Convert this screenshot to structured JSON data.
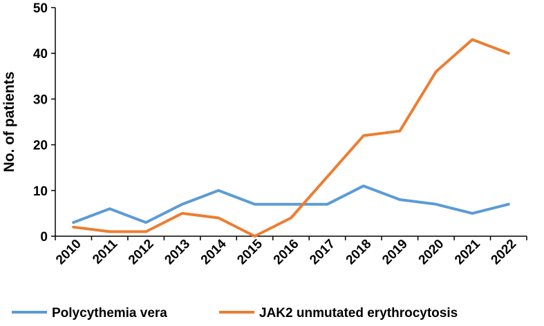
{
  "chart_data": {
    "type": "line",
    "title": "",
    "xlabel": "",
    "ylabel": "No. of patients",
    "ylim": [
      0,
      50
    ],
    "yticks": [
      0,
      10,
      20,
      30,
      40,
      50
    ],
    "grid": false,
    "legend_position": "bottom",
    "x": [
      "2010",
      "2011",
      "2012",
      "2013",
      "2014",
      "2015",
      "2016",
      "2017",
      "2018",
      "2019",
      "2020",
      "2021",
      "2022"
    ],
    "series": [
      {
        "name": "Polycythemia vera",
        "color": "#5B9BD5",
        "values": [
          3,
          6,
          3,
          7,
          10,
          7,
          7,
          7,
          11,
          8,
          7,
          5,
          7
        ]
      },
      {
        "name": "JAK2 unmutated erythrocytosis",
        "color": "#ED7D31",
        "values": [
          2,
          1,
          1,
          5,
          4,
          0,
          4,
          13,
          22,
          23,
          36,
          43,
          40
        ]
      }
    ]
  }
}
